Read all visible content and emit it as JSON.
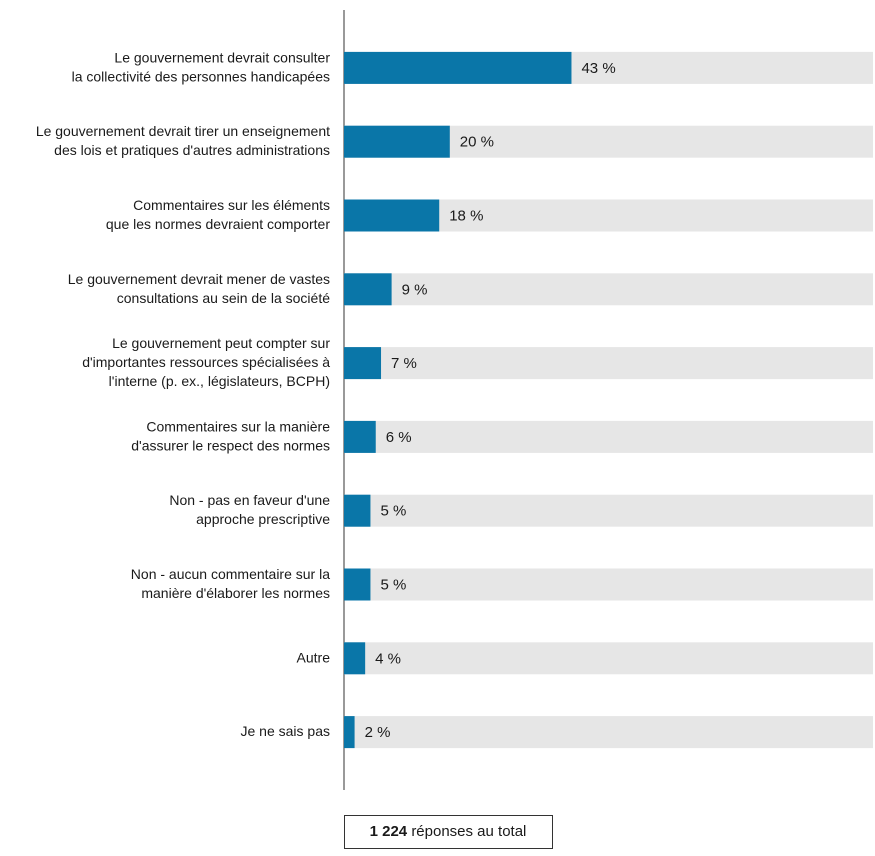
{
  "chart_data": {
    "type": "hbar",
    "categories": [
      [
        "Le gouvernement devrait consulter",
        "la collectivité des personnes handicapées"
      ],
      [
        "Le gouvernement devrait tirer un enseignement",
        "des lois et pratiques d'autres administrations"
      ],
      [
        "Commentaires sur les éléments",
        "que les normes devraient comporter"
      ],
      [
        "Le gouvernement devrait mener de vastes",
        "consultations au sein de la société"
      ],
      [
        "Le gouvernement peut compter sur",
        "d'importantes ressources spécialisées à",
        "l'interne (p. ex., législateurs, BCPH)"
      ],
      [
        "Commentaires sur la manière",
        "d'assurer le respect des normes"
      ],
      [
        "Non - pas en faveur d'une",
        "approche prescriptive"
      ],
      [
        "Non - aucun commentaire sur la",
        "manière d'élaborer les normes"
      ],
      [
        "Autre"
      ],
      [
        "Je ne sais pas"
      ]
    ],
    "values": [
      43,
      20,
      18,
      9,
      7,
      6,
      5,
      5,
      4,
      2
    ],
    "value_labels": [
      "43 %",
      "20 %",
      "18 %",
      "9 %",
      "7 %",
      "6 %",
      "5 %",
      "5 %",
      "4 %",
      "2 %"
    ],
    "color": "#0a76a8",
    "track_color": "#e6e6e6",
    "xlim": [
      0,
      100
    ],
    "total_count": "1 224",
    "total_text": "réponses au total"
  }
}
